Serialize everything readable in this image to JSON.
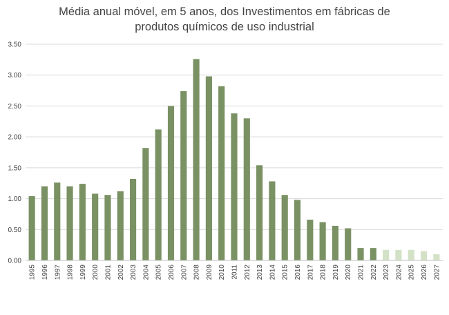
{
  "chart_data": {
    "type": "bar",
    "title_lines": [
      "Média anual móvel, em 5 anos, dos Investimentos em fábricas de",
      "produtos químicos de uso industrial"
    ],
    "xlabel": "",
    "ylabel": "",
    "ylim": [
      0,
      3.5
    ],
    "yticks": [
      "0.00",
      "0.50",
      "1.00",
      "1.50",
      "2.00",
      "2.50",
      "3.00",
      "3.50"
    ],
    "grid": true,
    "legend": "none",
    "colors": {
      "bar": "#7a9164",
      "bar_projected": "#d3e2c6",
      "grid": "#d9d9d9",
      "axis": "#bfbfbf",
      "text": "#404040"
    },
    "categories": [
      "1995",
      "1996",
      "1997",
      "1998",
      "1999",
      "2000",
      "2001",
      "2002",
      "2003",
      "2004",
      "2005",
      "2006",
      "2007",
      "2008",
      "2009",
      "2010",
      "2011",
      "2012",
      "2013",
      "2014",
      "2015",
      "2016",
      "2017",
      "2018",
      "2019",
      "2020",
      "2021",
      "2022",
      "2023",
      "2024",
      "2025",
      "2026",
      "2027"
    ],
    "values": [
      1.04,
      1.2,
      1.26,
      1.2,
      1.24,
      1.08,
      1.06,
      1.12,
      1.32,
      1.82,
      2.12,
      2.5,
      2.74,
      3.26,
      2.98,
      2.82,
      2.38,
      2.3,
      1.54,
      1.28,
      1.06,
      0.98,
      0.66,
      0.62,
      0.56,
      0.52,
      0.2,
      0.2,
      0.17,
      0.17,
      0.17,
      0.15,
      0.1
    ],
    "projected_from": "2023"
  }
}
